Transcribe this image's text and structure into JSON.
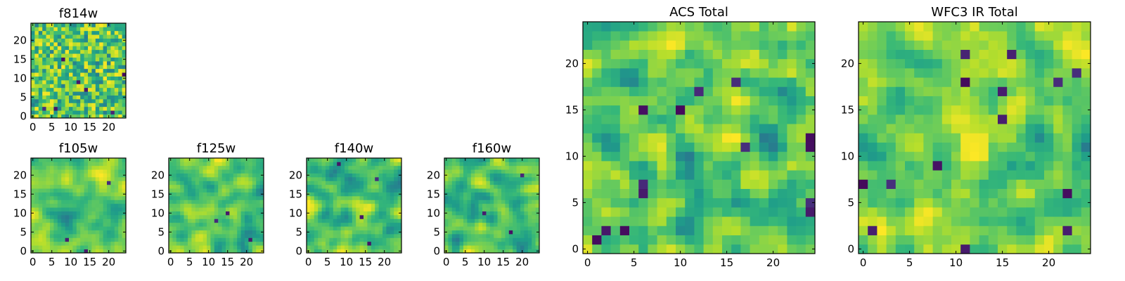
{
  "chart_data": [
    {
      "name": "f814w",
      "type": "heatmap",
      "title": "f814w",
      "colormap": "viridis",
      "grid_size": 25,
      "xlim": [
        0,
        24
      ],
      "ylim": [
        0,
        24
      ],
      "xticks": [
        0,
        5,
        10,
        15,
        20
      ],
      "yticks": [
        0,
        5,
        10,
        15,
        20
      ],
      "texture": "fine",
      "dark_spots": [
        [
          3,
          2
        ],
        [
          6,
          2
        ],
        [
          21,
          1
        ],
        [
          24,
          11
        ],
        [
          14,
          7
        ],
        [
          8,
          15
        ],
        [
          12,
          9
        ]
      ]
    },
    {
      "name": "f105w",
      "type": "heatmap",
      "title": "f105w",
      "colormap": "viridis",
      "grid_size": 25,
      "xlim": [
        0,
        24
      ],
      "ylim": [
        0,
        24
      ],
      "xticks": [
        0,
        5,
        10,
        15,
        20
      ],
      "yticks": [
        0,
        5,
        10,
        15,
        20
      ],
      "texture": "smooth",
      "dark_spots": [
        [
          14,
          0
        ],
        [
          20,
          18
        ],
        [
          9,
          3
        ]
      ]
    },
    {
      "name": "f125w",
      "type": "heatmap",
      "title": "f125w",
      "colormap": "viridis",
      "grid_size": 25,
      "xlim": [
        0,
        24
      ],
      "ylim": [
        0,
        24
      ],
      "xticks": [
        0,
        5,
        10,
        15,
        20
      ],
      "yticks": [
        0,
        5,
        10,
        15,
        20
      ],
      "texture": "smooth",
      "dark_spots": [
        [
          12,
          8
        ],
        [
          15,
          10
        ],
        [
          21,
          3
        ]
      ]
    },
    {
      "name": "f140w",
      "type": "heatmap",
      "title": "f140w",
      "colormap": "viridis",
      "grid_size": 25,
      "xlim": [
        0,
        24
      ],
      "ylim": [
        0,
        24
      ],
      "xticks": [
        0,
        5,
        10,
        15,
        20
      ],
      "yticks": [
        0,
        5,
        10,
        15,
        20
      ],
      "texture": "smooth",
      "dark_spots": [
        [
          8,
          23
        ],
        [
          18,
          19
        ],
        [
          14,
          9
        ],
        [
          16,
          2
        ]
      ]
    },
    {
      "name": "f160w",
      "type": "heatmap",
      "title": "f160w",
      "colormap": "viridis",
      "grid_size": 25,
      "xlim": [
        0,
        24
      ],
      "ylim": [
        0,
        24
      ],
      "xticks": [
        0,
        5,
        10,
        15,
        20
      ],
      "yticks": [
        0,
        5,
        10,
        15,
        20
      ],
      "texture": "smooth",
      "dark_spots": [
        [
          20,
          20
        ],
        [
          10,
          10
        ],
        [
          17,
          5
        ]
      ]
    },
    {
      "name": "acs-total",
      "type": "heatmap",
      "title": "ACS Total",
      "colormap": "viridis",
      "grid_size": 25,
      "xlim": [
        0,
        24
      ],
      "ylim": [
        0,
        24
      ],
      "xticks": [
        0,
        5,
        10,
        15,
        20
      ],
      "yticks": [
        0,
        5,
        10,
        15,
        20
      ],
      "texture": "medium",
      "bright_spot": null,
      "dark_spots": [
        [
          6,
          15
        ],
        [
          10,
          15
        ],
        [
          24,
          11
        ],
        [
          24,
          12
        ],
        [
          6,
          7
        ],
        [
          6,
          6
        ],
        [
          2,
          2
        ],
        [
          4,
          2
        ],
        [
          1,
          1
        ],
        [
          24,
          4
        ],
        [
          24,
          5
        ],
        [
          17,
          11
        ],
        [
          12,
          17
        ],
        [
          16,
          18
        ]
      ]
    },
    {
      "name": "wfc3-ir-total",
      "type": "heatmap",
      "title": "WFC3 IR Total",
      "colormap": "viridis",
      "grid_size": 25,
      "xlim": [
        0,
        24
      ],
      "ylim": [
        0,
        24
      ],
      "xticks": [
        0,
        5,
        10,
        15,
        20
      ],
      "yticks": [
        0,
        5,
        10,
        15,
        20
      ],
      "texture": "medium",
      "bright_spot": [
        12,
        11
      ],
      "dark_spots": [
        [
          11,
          21
        ],
        [
          16,
          21
        ],
        [
          11,
          18
        ],
        [
          15,
          17
        ],
        [
          21,
          18
        ],
        [
          23,
          19
        ],
        [
          3,
          7
        ],
        [
          0,
          7
        ],
        [
          1,
          2
        ],
        [
          8,
          9
        ],
        [
          22,
          6
        ],
        [
          22,
          2
        ],
        [
          11,
          0
        ],
        [
          15,
          14
        ]
      ]
    }
  ]
}
